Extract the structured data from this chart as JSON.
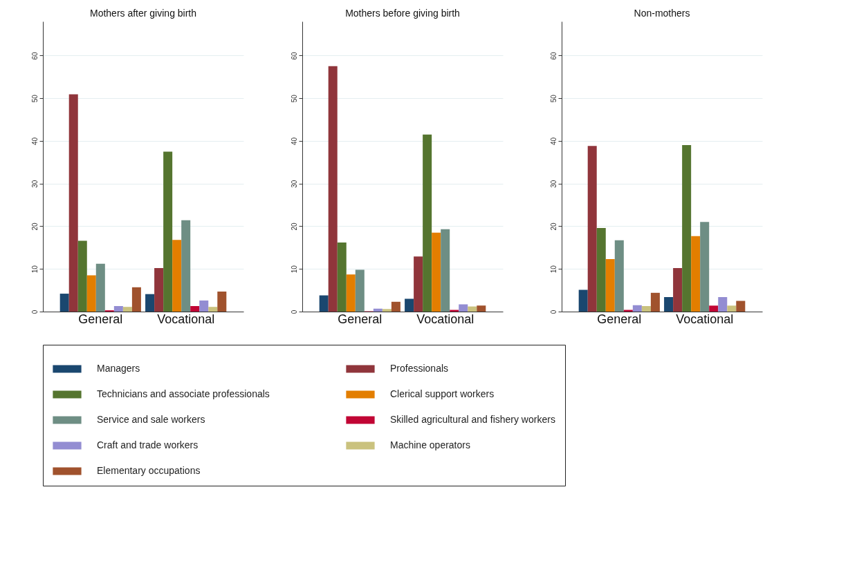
{
  "chart_data": [
    {
      "type": "bar",
      "title": "Mothers after giving birth",
      "categories": [
        "General",
        "Vocational"
      ],
      "ylim": [
        0,
        68
      ],
      "yticks": [
        0,
        10,
        20,
        30,
        40,
        50,
        60
      ],
      "grid": "y",
      "legend": "bottom",
      "series": [
        {
          "name": "Managers",
          "color": "#1a476f",
          "values": [
            4.2,
            4.1
          ]
        },
        {
          "name": "Professionals",
          "color": "#90353b",
          "values": [
            50.9,
            10.2
          ]
        },
        {
          "name": "Technicians and associate professionals",
          "color": "#55752f",
          "values": [
            16.6,
            37.5
          ]
        },
        {
          "name": "Clerical support workers",
          "color": "#e37e00",
          "values": [
            8.5,
            16.8
          ]
        },
        {
          "name": "Service and sale workers",
          "color": "#6e8e84",
          "values": [
            11.2,
            21.4
          ]
        },
        {
          "name": "Skilled agricultural and fishery workers",
          "color": "#c10534",
          "values": [
            0.3,
            1.3
          ]
        },
        {
          "name": "Craft and trade workers",
          "color": "#938dd2",
          "values": [
            1.3,
            2.6
          ]
        },
        {
          "name": "Machine operators",
          "color": "#cac27e",
          "values": [
            1.1,
            1.1
          ]
        },
        {
          "name": "Elementary occupations",
          "color": "#a0522d",
          "values": [
            5.7,
            4.7
          ]
        }
      ]
    },
    {
      "type": "bar",
      "title": "Mothers before giving birth",
      "categories": [
        "General",
        "Vocational"
      ],
      "ylim": [
        0,
        68
      ],
      "yticks": [
        0,
        10,
        20,
        30,
        40,
        50,
        60
      ],
      "grid": "y",
      "series": [
        {
          "color": "#1a476f",
          "values": [
            3.8,
            3.0
          ]
        },
        {
          "color": "#90353b",
          "values": [
            57.5,
            12.9
          ]
        },
        {
          "color": "#55752f",
          "values": [
            16.2,
            41.5
          ]
        },
        {
          "color": "#e37e00",
          "values": [
            8.7,
            18.5
          ]
        },
        {
          "color": "#6e8e84",
          "values": [
            9.8,
            19.3
          ]
        },
        {
          "color": "#c10534",
          "values": [
            0.1,
            0.4
          ]
        },
        {
          "color": "#938dd2",
          "values": [
            0.7,
            1.7
          ]
        },
        {
          "color": "#cac27e",
          "values": [
            0.6,
            1.2
          ]
        },
        {
          "color": "#a0522d",
          "values": [
            2.3,
            1.4
          ]
        }
      ]
    },
    {
      "type": "bar",
      "title": "Non-mothers",
      "categories": [
        "General",
        "Vocational"
      ],
      "ylim": [
        0,
        68
      ],
      "yticks": [
        0,
        10,
        20,
        30,
        40,
        50,
        60
      ],
      "grid": "y",
      "series": [
        {
          "color": "#1a476f",
          "values": [
            5.1,
            3.4
          ]
        },
        {
          "color": "#90353b",
          "values": [
            38.8,
            10.2
          ]
        },
        {
          "color": "#55752f",
          "values": [
            19.6,
            39.0
          ]
        },
        {
          "color": "#e37e00",
          "values": [
            12.3,
            17.7
          ]
        },
        {
          "color": "#6e8e84",
          "values": [
            16.7,
            21.0
          ]
        },
        {
          "color": "#c10534",
          "values": [
            0.4,
            1.4
          ]
        },
        {
          "color": "#938dd2",
          "values": [
            1.5,
            3.4
          ]
        },
        {
          "color": "#cac27e",
          "values": [
            1.3,
            1.4
          ]
        },
        {
          "color": "#a0522d",
          "values": [
            4.4,
            2.5
          ]
        }
      ]
    }
  ]
}
